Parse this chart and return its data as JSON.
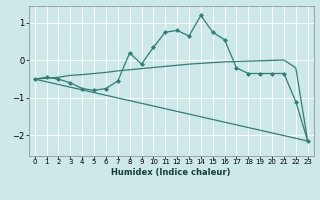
{
  "xlabel": "Humidex (Indice chaleur)",
  "ylabel": "",
  "bg_color": "#cce8e8",
  "grid_color": "#ffffff",
  "line_color": "#2e7f75",
  "x_ticks": [
    0,
    1,
    2,
    3,
    4,
    5,
    6,
    7,
    8,
    9,
    10,
    11,
    12,
    13,
    14,
    15,
    16,
    17,
    18,
    19,
    20,
    21,
    22,
    23
  ],
  "y_ticks": [
    -2,
    -1,
    0,
    1
  ],
  "xlim": [
    -0.5,
    23.5
  ],
  "ylim": [
    -2.55,
    1.45
  ],
  "line1_x": [
    0,
    1,
    2,
    3,
    4,
    5,
    6,
    7,
    8,
    9,
    10,
    11,
    12,
    13,
    14,
    15,
    16,
    17,
    18,
    19,
    20,
    21,
    22,
    23
  ],
  "line1_y": [
    -0.5,
    -0.45,
    -0.5,
    -0.6,
    -0.75,
    -0.8,
    -0.75,
    -0.55,
    0.2,
    -0.1,
    0.35,
    0.75,
    0.8,
    0.65,
    1.2,
    0.75,
    0.55,
    -0.2,
    -0.35,
    -0.35,
    -0.35,
    -0.35,
    -1.1,
    -2.15
  ],
  "line2_x": [
    0,
    2,
    3,
    4,
    5,
    6,
    7,
    8,
    9,
    10,
    11,
    12,
    13,
    14,
    15,
    16,
    17,
    18,
    19,
    20,
    21,
    22,
    23
  ],
  "line2_y": [
    -0.5,
    -0.45,
    -0.4,
    -0.38,
    -0.35,
    -0.32,
    -0.28,
    -0.25,
    -0.22,
    -0.19,
    -0.16,
    -0.13,
    -0.1,
    -0.08,
    -0.06,
    -0.04,
    -0.03,
    -0.02,
    -0.01,
    0.0,
    0.01,
    -0.2,
    -2.15
  ],
  "line3_x": [
    0,
    23
  ],
  "line3_y": [
    -0.5,
    -2.15
  ]
}
